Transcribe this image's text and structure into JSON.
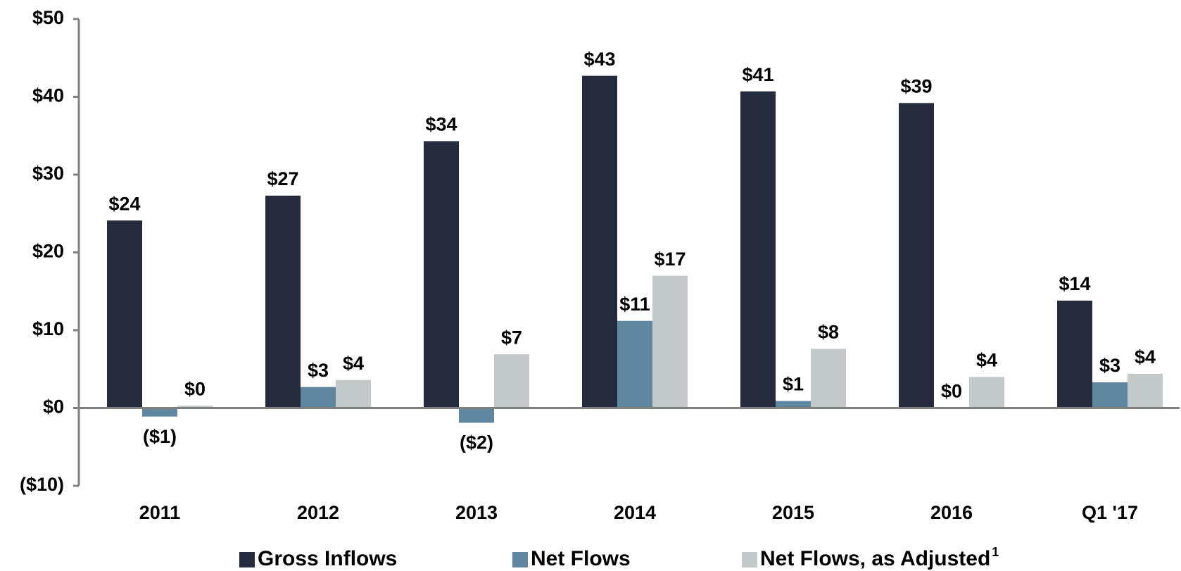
{
  "chart_data": {
    "type": "bar",
    "categories": [
      "2011",
      "2012",
      "2013",
      "2014",
      "2015",
      "2016",
      "Q1 '17"
    ],
    "series": [
      {
        "name": "Gross Inflows",
        "color": "#252a3c",
        "values": [
          24.1,
          27.3,
          34.3,
          42.7,
          40.7,
          39.2,
          13.8
        ],
        "value_labels": [
          "$24",
          "$27",
          "$34",
          "$43",
          "$41",
          "$39",
          "$14"
        ]
      },
      {
        "name": "Net Flows",
        "color": "#5f88a0",
        "values": [
          -1.1,
          2.7,
          -1.9,
          11.2,
          0.9,
          0,
          3.3
        ],
        "value_labels": [
          "($1)",
          "$3",
          "($2)",
          "$11",
          "$1",
          "$0",
          "$3"
        ]
      },
      {
        "name": "Net Flows, as Adjusted",
        "superscript": "1",
        "color": "#c3c9c8",
        "values": [
          0.3,
          3.6,
          6.9,
          17.0,
          7.6,
          4.0,
          4.4
        ],
        "value_labels": [
          "$0",
          "$4",
          "$7",
          "$17",
          "$8",
          "$4",
          "$4"
        ]
      }
    ],
    "ylim": [
      -10,
      50
    ],
    "yticks": [
      {
        "value": 50,
        "label": "$50"
      },
      {
        "value": 40,
        "label": "$40"
      },
      {
        "value": 30,
        "label": "$30"
      },
      {
        "value": 20,
        "label": "$20"
      },
      {
        "value": 10,
        "label": "$10"
      },
      {
        "value": 0,
        "label": "$0"
      },
      {
        "value": -10,
        "label": "($10)"
      }
    ],
    "grid": false,
    "legend": "bottom"
  }
}
